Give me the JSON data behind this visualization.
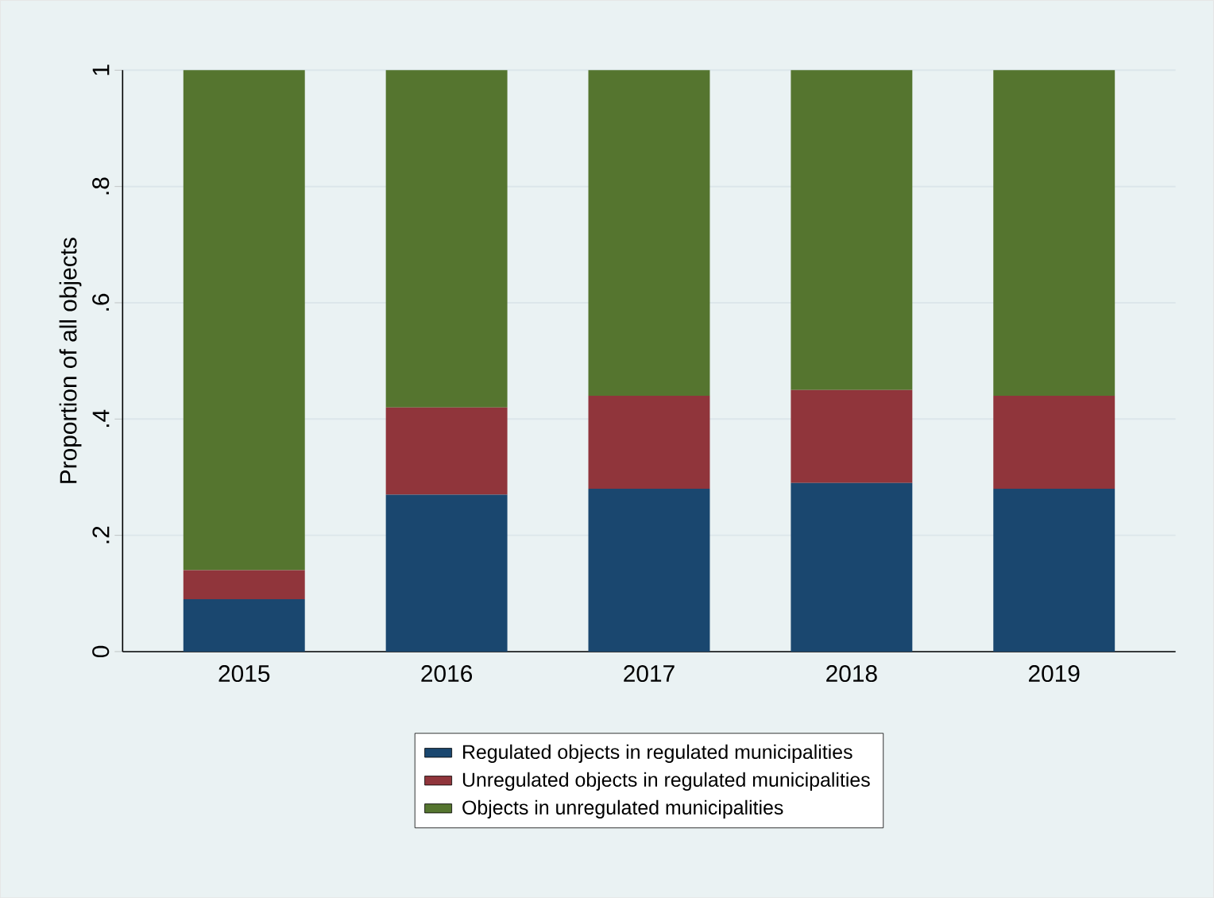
{
  "chart_data": {
    "type": "bar",
    "stacked": true,
    "ylabel": "Proportion of all objects",
    "categories": [
      "2015",
      "2016",
      "2017",
      "2018",
      "2019"
    ],
    "series": [
      {
        "name": "Regulated objects in regulated municipalities",
        "color": "#1a476f",
        "values": [
          0.09,
          0.27,
          0.28,
          0.29,
          0.28
        ]
      },
      {
        "name": "Unregulated objects in regulated municipalities",
        "color": "#90353b",
        "values": [
          0.05,
          0.15,
          0.16,
          0.16,
          0.16
        ]
      },
      {
        "name": "Objects in unregulated municipalities",
        "color": "#55752f",
        "values": [
          0.86,
          0.58,
          0.56,
          0.55,
          0.56
        ]
      }
    ],
    "ylim": [
      0,
      1
    ],
    "yticks": [
      0,
      {
        "value": 0.2,
        "label": ".2"
      },
      {
        "value": 0.4,
        "label": ".4"
      },
      {
        "value": 0.6,
        "label": ".6"
      },
      {
        "value": 0.8,
        "label": ".8"
      },
      1
    ],
    "grid": "y",
    "legend": "bottom"
  }
}
